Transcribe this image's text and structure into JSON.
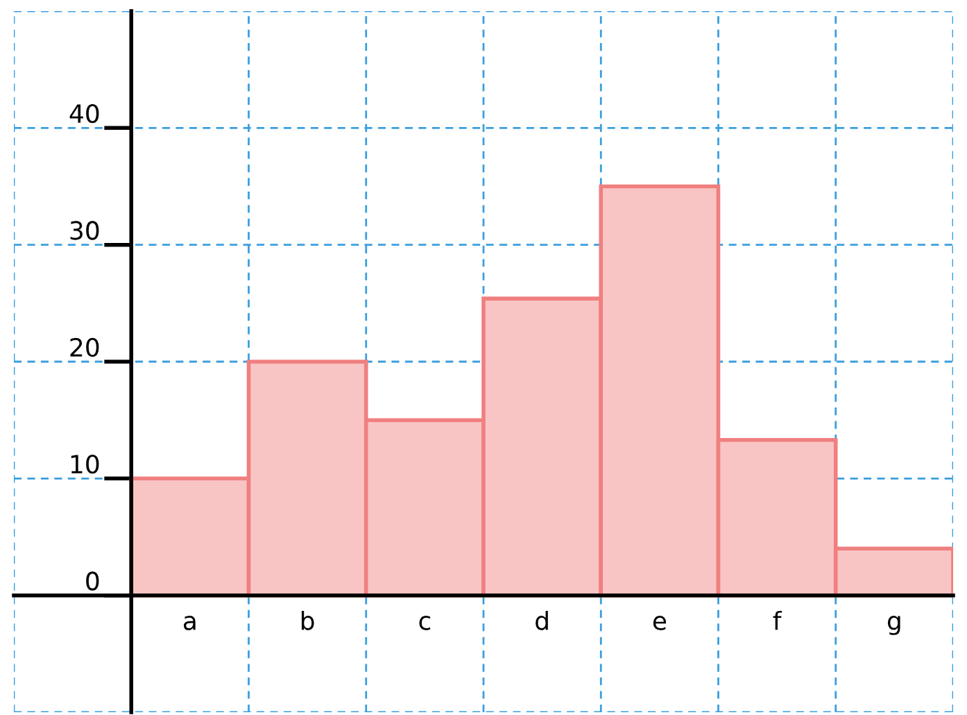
{
  "chart_data": {
    "type": "bar",
    "categories": [
      "a",
      "b",
      "c",
      "d",
      "e",
      "f",
      "g"
    ],
    "values": [
      10,
      20,
      15,
      25.4,
      35,
      13.3,
      4
    ],
    "color": "#f9c4c4",
    "ylim": [
      -10,
      50
    ],
    "yticks": [
      0,
      10,
      20,
      30,
      40
    ],
    "grid": true,
    "legend": false
  }
}
